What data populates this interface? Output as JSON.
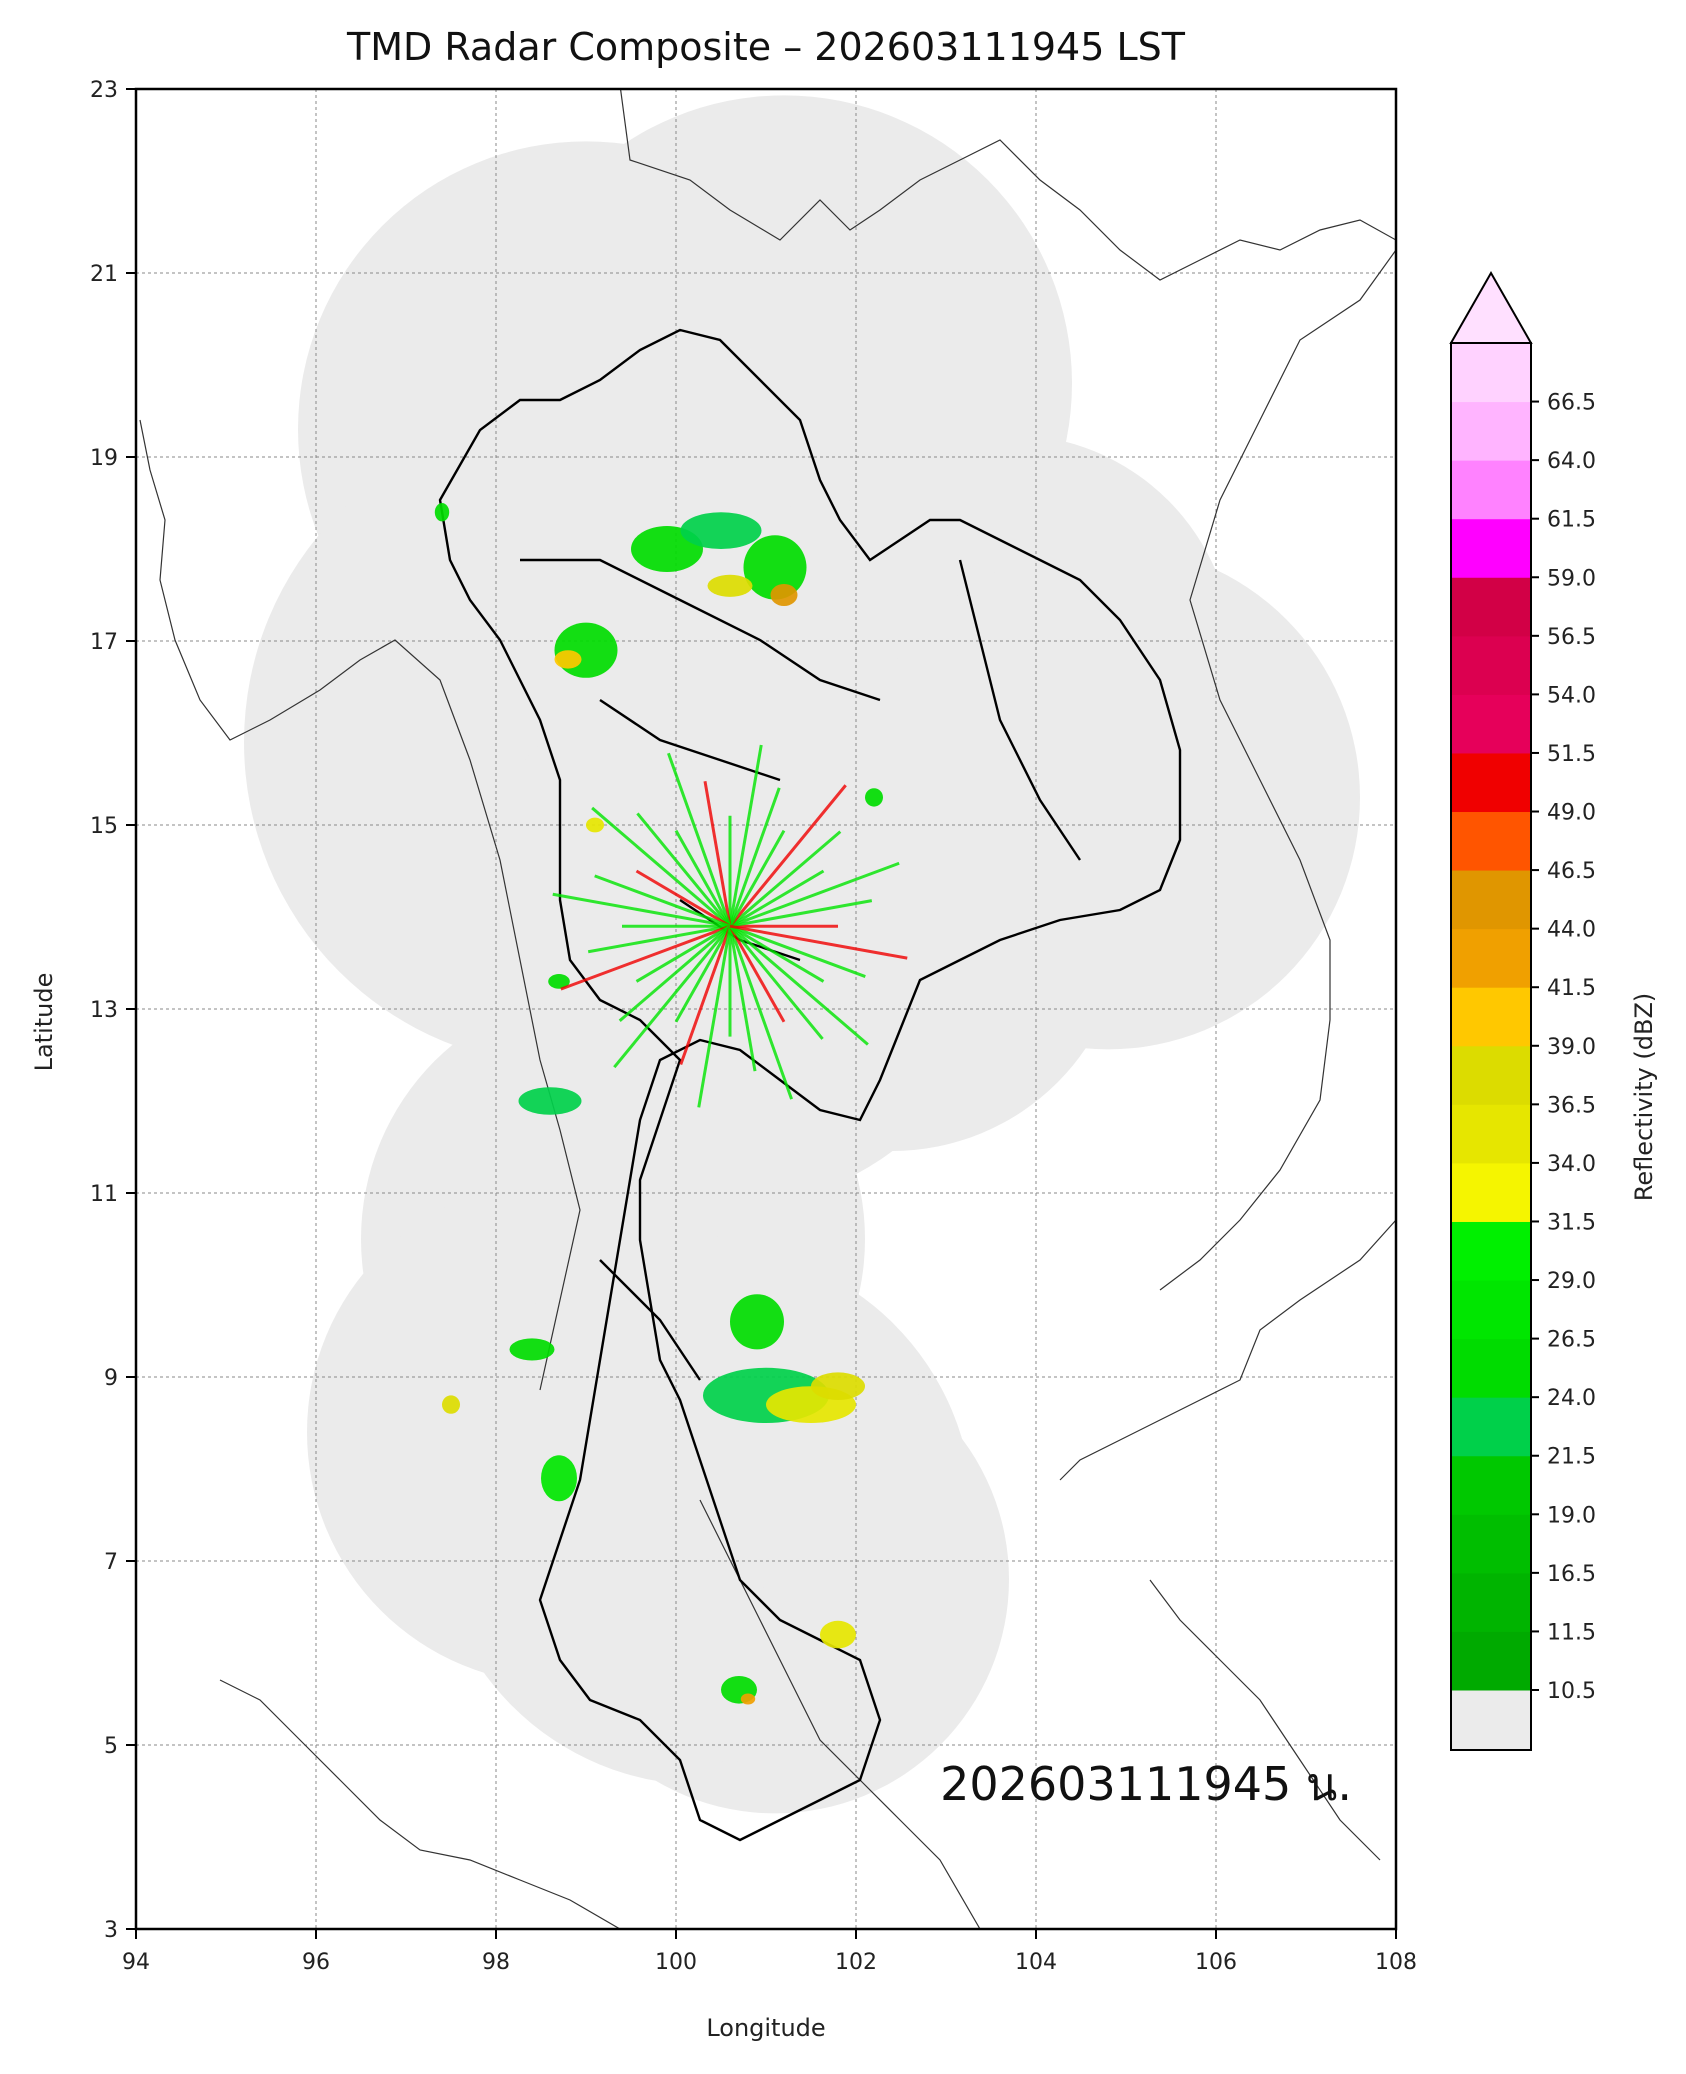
{
  "title": "TMD Radar Composite – 202603111945 LST",
  "axes": {
    "xlabel": "Longitude",
    "ylabel": "Latitude",
    "xticks": [
      "94",
      "96",
      "98",
      "100",
      "102",
      "104",
      "106",
      "108"
    ],
    "yticks": [
      "3",
      "5",
      "7",
      "9",
      "11",
      "13",
      "15",
      "17",
      "19",
      "21",
      "23"
    ],
    "xlim": [
      94,
      108
    ],
    "ylim": [
      3,
      23
    ],
    "grid": true
  },
  "timestamp_label": "202603111945 น.",
  "colorbar": {
    "label": "Reflectivity (dBZ)",
    "ticks": [
      "10.5",
      "11.5",
      "16.5",
      "19.0",
      "21.5",
      "24.0",
      "26.5",
      "29.0",
      "31.5",
      "34.0",
      "36.5",
      "39.0",
      "41.5",
      "44.0",
      "46.5",
      "49.0",
      "51.5",
      "54.0",
      "56.5",
      "59.0",
      "61.5",
      "64.0",
      "66.5"
    ],
    "colors": [
      "#00aa00",
      "#00b400",
      "#00be00",
      "#00c800",
      "#00d04a",
      "#00dc00",
      "#00e600",
      "#00f000",
      "#f5f500",
      "#e6e600",
      "#dcdc00",
      "#ffc800",
      "#f0a000",
      "#e09600",
      "#ff5500",
      "#f00000",
      "#e6005a",
      "#dc0050",
      "#d20046",
      "#ff00ff",
      "#ff82ff",
      "#ffb4ff",
      "#ffd2ff"
    ],
    "extend_color": "#ffe0ff",
    "nodata_color": "#ebebeb"
  },
  "map": {
    "coverage_color": "#ebebeb",
    "border_color": "#000000",
    "coast_color": "#333333"
  }
}
